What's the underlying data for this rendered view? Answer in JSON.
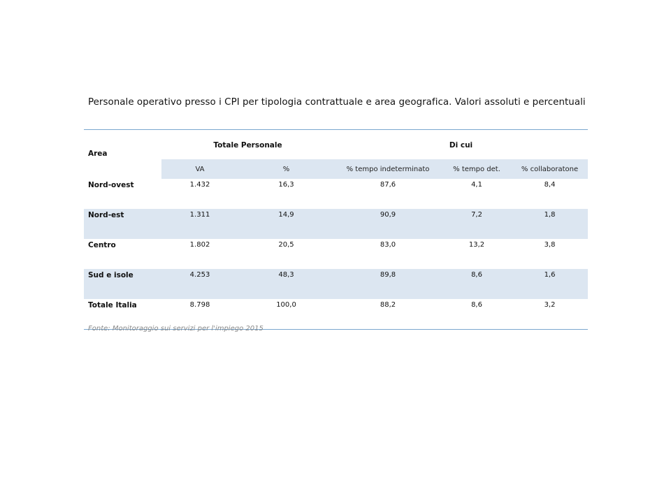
{
  "title": "Personale operativo presso i CPI per tipologia contrattuale e area geografica. Valori assoluti e percentuali",
  "table": {
    "area_header": "Area",
    "group_headers": [
      "Totale Personale",
      "Di cui"
    ],
    "sub_headers": [
      "VA",
      "%",
      "% tempo indeterminato",
      "% tempo det.",
      "% collaboratone"
    ],
    "rows": [
      {
        "area": "Nord-ovest",
        "cells": [
          "1.432",
          "16,3",
          "87,6",
          "4,1",
          "8,4"
        ]
      },
      {
        "area": "Nord-est",
        "cells": [
          "1.311",
          "14,9",
          "90,9",
          "7,2",
          "1,8"
        ]
      },
      {
        "area": "Centro",
        "cells": [
          "1.802",
          "20,5",
          "83,0",
          "13,2",
          "3,8"
        ]
      },
      {
        "area": "Sud e isole",
        "cells": [
          "4.253",
          "48,3",
          "89,8",
          "8,6",
          "1,6"
        ]
      },
      {
        "area": "Totale Italia",
        "cells": [
          "8.798",
          "100,0",
          "88,2",
          "8,6",
          "3,2"
        ]
      }
    ]
  },
  "source": "Fonte: Monitoraggio  sui servizi per l'impiego 2015",
  "colors": {
    "rule": "#7aa7cf",
    "shade": "#dce6f1",
    "source_text": "#8a8a8a"
  }
}
